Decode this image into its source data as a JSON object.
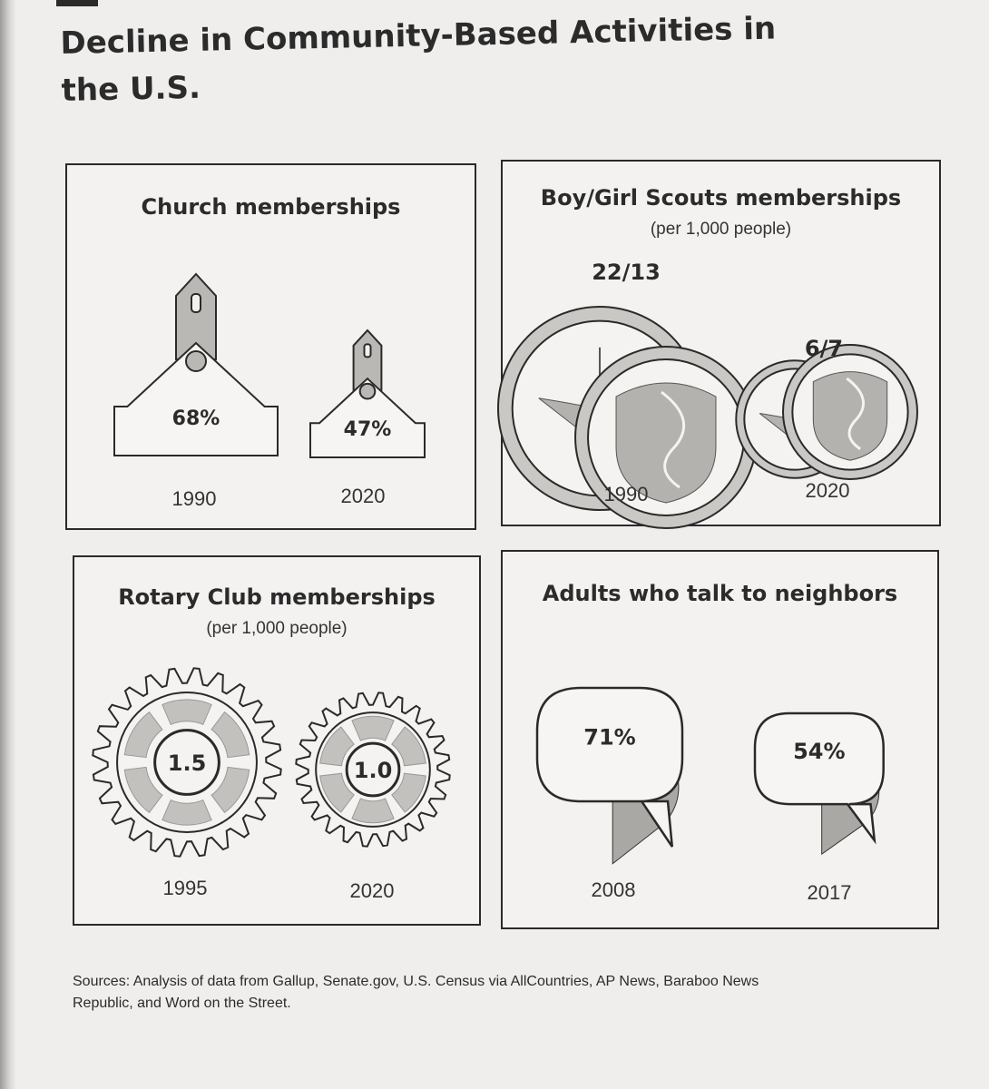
{
  "title": "Decline in Community-Based Activities in the U.S.",
  "chart_data": [
    {
      "type": "table",
      "title": "Church memberships",
      "categories": [
        "1990",
        "2020"
      ],
      "values": [
        68,
        47
      ],
      "value_labels": [
        "68%",
        "47%"
      ],
      "unit": "%"
    },
    {
      "type": "table",
      "title": "Boy/Girl Scouts memberships",
      "subtitle": "(per 1,000 people)",
      "categories": [
        "1990",
        "2020"
      ],
      "series": [
        {
          "name": "Boy Scouts",
          "values": [
            22,
            6
          ]
        },
        {
          "name": "Girl Scouts",
          "values": [
            13,
            7
          ]
        }
      ],
      "value_labels": [
        "22/13",
        "6/7"
      ]
    },
    {
      "type": "table",
      "title": "Rotary Club memberships",
      "subtitle": "(per 1,000 people)",
      "categories": [
        "1995",
        "2020"
      ],
      "values": [
        1.5,
        1.0
      ],
      "value_labels": [
        "1.5",
        "1.0"
      ]
    },
    {
      "type": "table",
      "title": "Adults who talk to neighbors",
      "categories": [
        "2008",
        "2017"
      ],
      "values": [
        71,
        54
      ],
      "value_labels": [
        "71%",
        "54%"
      ],
      "unit": "%"
    }
  ],
  "sources": "Sources: Analysis of data from Gallup, Senate.gov, U.S. Census via AllCountries, AP News, Baraboo News Republic, and Word on the Street."
}
